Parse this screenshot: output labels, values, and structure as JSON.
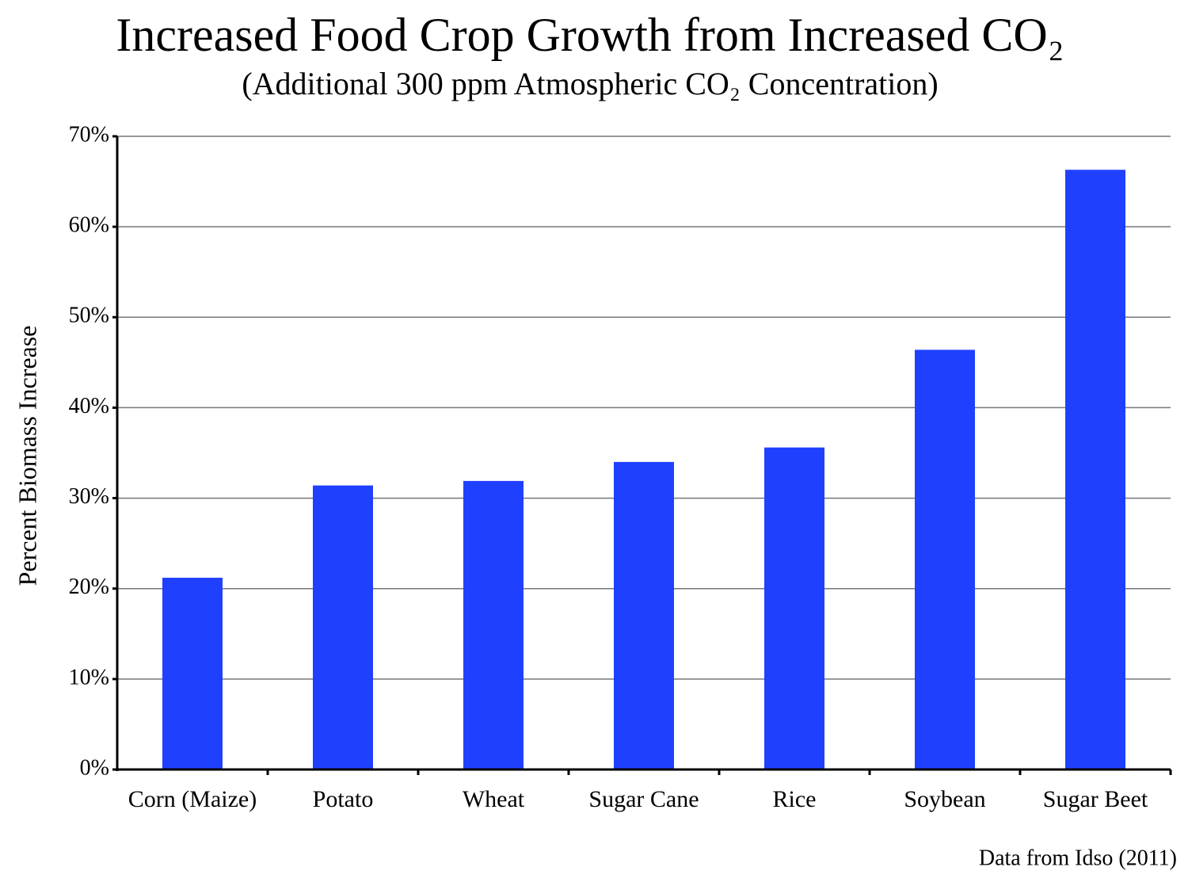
{
  "chart_data": {
    "type": "bar",
    "title": "Increased Food Crop Growth from Increased CO₂",
    "subtitle": "(Additional 300 ppm Atmospheric CO₂ Concentration)",
    "y_label": "Percent Biomass Increase",
    "note": "Data from Idso (2011)",
    "categories": [
      "Corn (Maize)",
      "Potato",
      "Wheat",
      "Sugar Cane",
      "Rice",
      "Soybean",
      "Sugar Beet"
    ],
    "values": [
      21.2,
      31.4,
      31.9,
      34.0,
      35.6,
      46.4,
      66.3
    ],
    "color": "#2040ff",
    "ylim": [
      0,
      70
    ],
    "yticks": [
      {
        "value": 0,
        "label": "0%"
      },
      {
        "value": 10,
        "label": "10%"
      },
      {
        "value": 20,
        "label": "20%"
      },
      {
        "value": 30,
        "label": "30%"
      },
      {
        "value": 40,
        "label": "40%"
      },
      {
        "value": 50,
        "label": "50%"
      },
      {
        "value": 60,
        "label": "60%"
      },
      {
        "value": 70,
        "label": "70%"
      }
    ],
    "grid": true
  }
}
